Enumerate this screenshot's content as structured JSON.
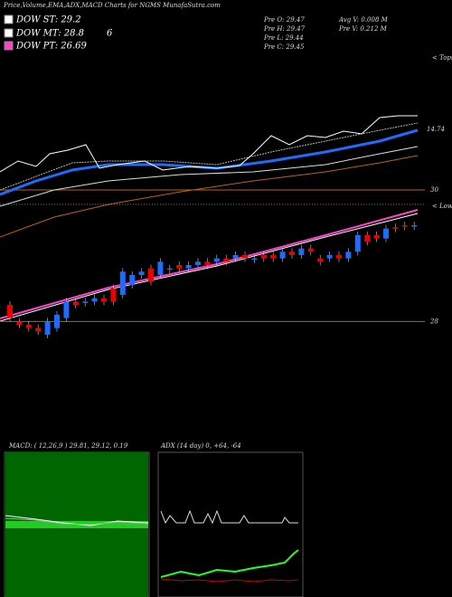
{
  "header": {
    "title": "Price,Volume,EMA,ADX,MACD Charts for NGMS MunafaSutra.com"
  },
  "legend": [
    "DOW ST: 29.2",
    "DOW MT: 28.8",
    "DOW PT: 26.69"
  ],
  "legend_note": "6",
  "info": {
    "open": "Pre  O: 29.47",
    "high": "Pre  H: 29.47",
    "low": "Pre  L: 29.44",
    "close": "Pre  C: 29.45",
    "avg_volume": "Avg V: 0.008 M",
    "volume": "Pre  V: 0.212 M"
  },
  "upper": {
    "level_label": "14.74",
    "axis_label": "30",
    "tops": "< Tops"
  },
  "lower": {
    "lows": "< Lows"
  },
  "macd": {
    "title": "MACD:                    ( 12,26,9 ) 29.81, 29.12, 0.19"
  },
  "adx": {
    "title": "ADX                     (14  day) 0, +64, -64"
  },
  "chart_data": {
    "type": "candlestick",
    "ylim": [
      27.5,
      29.9
    ],
    "yticks": [
      28
    ],
    "up_color": "#1e6cff",
    "down_color": "#e00",
    "open": [
      28.25,
      28.0,
      27.95,
      27.9,
      27.8,
      27.9,
      28.05,
      28.3,
      28.3,
      28.3,
      28.35,
      28.5,
      28.4,
      28.55,
      28.7,
      28.8,
      28.7,
      28.8,
      28.85,
      28.8,
      28.85,
      28.9,
      28.9,
      28.95,
      28.95,
      29.0,
      28.95,
      29.0,
      29.0,
      28.95,
      29.05,
      29.0,
      29.1,
      28.95,
      28.95,
      29.0,
      28.95,
      29.05,
      29.3,
      29.3,
      29.25,
      29.42,
      29.45,
      29.45
    ],
    "close": [
      28.05,
      27.95,
      27.9,
      27.85,
      28.0,
      28.1,
      28.3,
      28.25,
      28.3,
      28.35,
      28.3,
      28.3,
      28.75,
      28.7,
      28.75,
      28.6,
      28.9,
      28.8,
      28.8,
      28.85,
      28.9,
      28.85,
      28.95,
      28.9,
      29.0,
      28.95,
      28.95,
      28.95,
      28.95,
      29.05,
      29.0,
      29.1,
      29.05,
      28.9,
      29.0,
      28.95,
      29.05,
      29.3,
      29.2,
      29.25,
      29.4,
      29.4,
      29.44,
      29.45
    ]
  }
}
